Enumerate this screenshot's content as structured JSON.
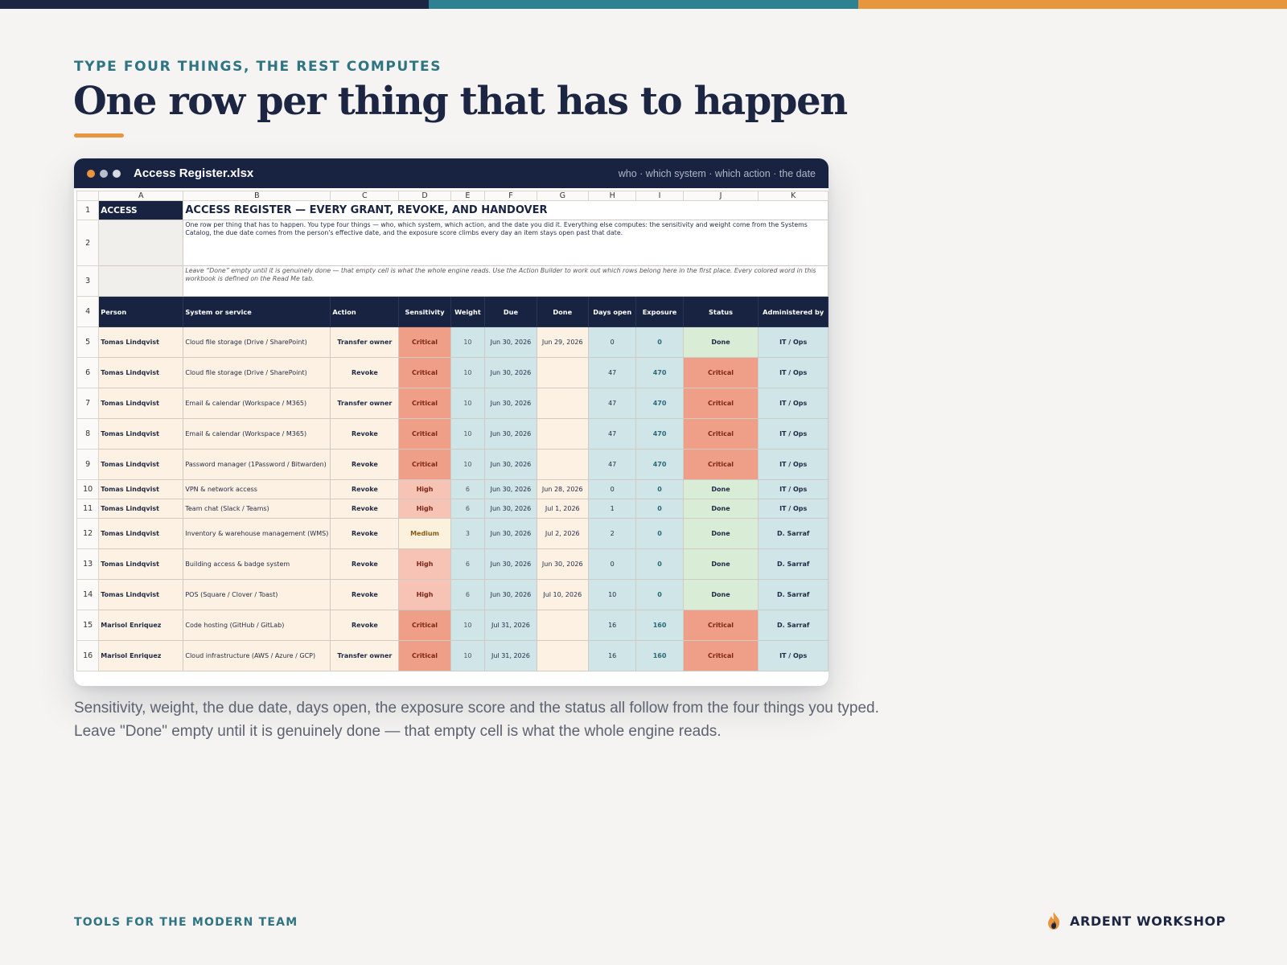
{
  "colors": {
    "navy": "#172340",
    "teal": "#2e7482",
    "orange": "#e8963d",
    "critical": "#ef9f88",
    "high": "#f6c3b4",
    "medium": "#fcf1dd",
    "done": "#d9ecd6"
  },
  "eyebrow": "TYPE FOUR THINGS, THE REST COMPUTES",
  "title": "One row per thing that has to happen",
  "window": {
    "filename": "Access Register.xlsx",
    "subtitle": "who · which system · which action · the date"
  },
  "sheet": {
    "columns": [
      "A",
      "B",
      "C",
      "D",
      "E",
      "F",
      "G",
      "H",
      "I",
      "J",
      "K"
    ],
    "row_numbers": [
      "1",
      "2",
      "3",
      "4",
      "5",
      "6",
      "7",
      "8",
      "9",
      "10",
      "11",
      "12",
      "13",
      "14",
      "15",
      "16"
    ],
    "a1_label": "ACCESS",
    "sheet_title": "ACCESS REGISTER — EVERY GRANT, REVOKE, AND HANDOVER",
    "description": "One row per thing that has to happen. You type four things — who, which system, which action, and the date you did it. Everything else computes: the sensitivity and weight come from the Systems Catalog, the due date comes from the person's effective date, and the exposure score climbs every day an item stays open past that date.",
    "note": "Leave “Done” empty until it is genuinely done — that empty cell is what the whole engine reads. Use the Action Builder to work out which rows belong here in the first place. Every colored word in this workbook is defined on the Read Me tab.",
    "headers": [
      "Person",
      "System or service",
      "Action",
      "Sensitivity",
      "Weight",
      "Due",
      "Done",
      "Days open",
      "Exposure",
      "Status",
      "Administered by"
    ],
    "rows": [
      {
        "person": "Tomas Lindqvist",
        "system": "Cloud file storage (Drive / SharePoint)",
        "action": "Transfer owner",
        "sensitivity": "Critical",
        "weight": "10",
        "due": "Jun 30, 2026",
        "done": "Jun 29, 2026",
        "days_open": "0",
        "exposure": "0",
        "status": "Done",
        "admin": "IT / Ops"
      },
      {
        "person": "Tomas Lindqvist",
        "system": "Cloud file storage (Drive / SharePoint)",
        "action": "Revoke",
        "sensitivity": "Critical",
        "weight": "10",
        "due": "Jun 30, 2026",
        "done": "",
        "days_open": "47",
        "exposure": "470",
        "status": "Critical",
        "admin": "IT / Ops"
      },
      {
        "person": "Tomas Lindqvist",
        "system": "Email & calendar (Workspace / M365)",
        "action": "Transfer owner",
        "sensitivity": "Critical",
        "weight": "10",
        "due": "Jun 30, 2026",
        "done": "",
        "days_open": "47",
        "exposure": "470",
        "status": "Critical",
        "admin": "IT / Ops"
      },
      {
        "person": "Tomas Lindqvist",
        "system": "Email & calendar (Workspace / M365)",
        "action": "Revoke",
        "sensitivity": "Critical",
        "weight": "10",
        "due": "Jun 30, 2026",
        "done": "",
        "days_open": "47",
        "exposure": "470",
        "status": "Critical",
        "admin": "IT / Ops"
      },
      {
        "person": "Tomas Lindqvist",
        "system": "Password manager (1Password / Bitwarden)",
        "action": "Revoke",
        "sensitivity": "Critical",
        "weight": "10",
        "due": "Jun 30, 2026",
        "done": "",
        "days_open": "47",
        "exposure": "470",
        "status": "Critical",
        "admin": "IT / Ops"
      },
      {
        "person": "Tomas Lindqvist",
        "system": "VPN & network access",
        "action": "Revoke",
        "sensitivity": "High",
        "weight": "6",
        "due": "Jun 30, 2026",
        "done": "Jun 28, 2026",
        "days_open": "0",
        "exposure": "0",
        "status": "Done",
        "admin": "IT / Ops"
      },
      {
        "person": "Tomas Lindqvist",
        "system": "Team chat (Slack / Teams)",
        "action": "Revoke",
        "sensitivity": "High",
        "weight": "6",
        "due": "Jun 30, 2026",
        "done": "Jul 1, 2026",
        "days_open": "1",
        "exposure": "0",
        "status": "Done",
        "admin": "IT / Ops"
      },
      {
        "person": "Tomas Lindqvist",
        "system": "Inventory & warehouse management (WMS)",
        "action": "Revoke",
        "sensitivity": "Medium",
        "weight": "3",
        "due": "Jun 30, 2026",
        "done": "Jul 2, 2026",
        "days_open": "2",
        "exposure": "0",
        "status": "Done",
        "admin": "D. Sarraf"
      },
      {
        "person": "Tomas Lindqvist",
        "system": "Building access & badge system",
        "action": "Revoke",
        "sensitivity": "High",
        "weight": "6",
        "due": "Jun 30, 2026",
        "done": "Jun 30, 2026",
        "days_open": "0",
        "exposure": "0",
        "status": "Done",
        "admin": "D. Sarraf"
      },
      {
        "person": "Tomas Lindqvist",
        "system": "POS (Square / Clover / Toast)",
        "action": "Revoke",
        "sensitivity": "High",
        "weight": "6",
        "due": "Jun 30, 2026",
        "done": "Jul 10, 2026",
        "days_open": "10",
        "exposure": "0",
        "status": "Done",
        "admin": "D. Sarraf"
      },
      {
        "person": "Marisol Enriquez",
        "system": "Code hosting (GitHub / GitLab)",
        "action": "Revoke",
        "sensitivity": "Critical",
        "weight": "10",
        "due": "Jul 31, 2026",
        "done": "",
        "days_open": "16",
        "exposure": "160",
        "status": "Critical",
        "admin": "D. Sarraf"
      },
      {
        "person": "Marisol Enriquez",
        "system": "Cloud infrastructure (AWS / Azure / GCP)",
        "action": "Transfer owner",
        "sensitivity": "Critical",
        "weight": "10",
        "due": "Jul 31, 2026",
        "done": "",
        "days_open": "16",
        "exposure": "160",
        "status": "Critical",
        "admin": "IT / Ops"
      }
    ]
  },
  "caption": {
    "line1": "Sensitivity, weight, the due date, days open, the exposure score and the status all follow from the four things you typed.",
    "line2": "Leave \"Done\" empty until it is genuinely done — that empty cell is what the whole engine reads."
  },
  "footer": {
    "tagline": "TOOLS FOR THE MODERN TEAM",
    "brand": "ARDENT WORKSHOP",
    "brand_icon": "flame-icon"
  }
}
